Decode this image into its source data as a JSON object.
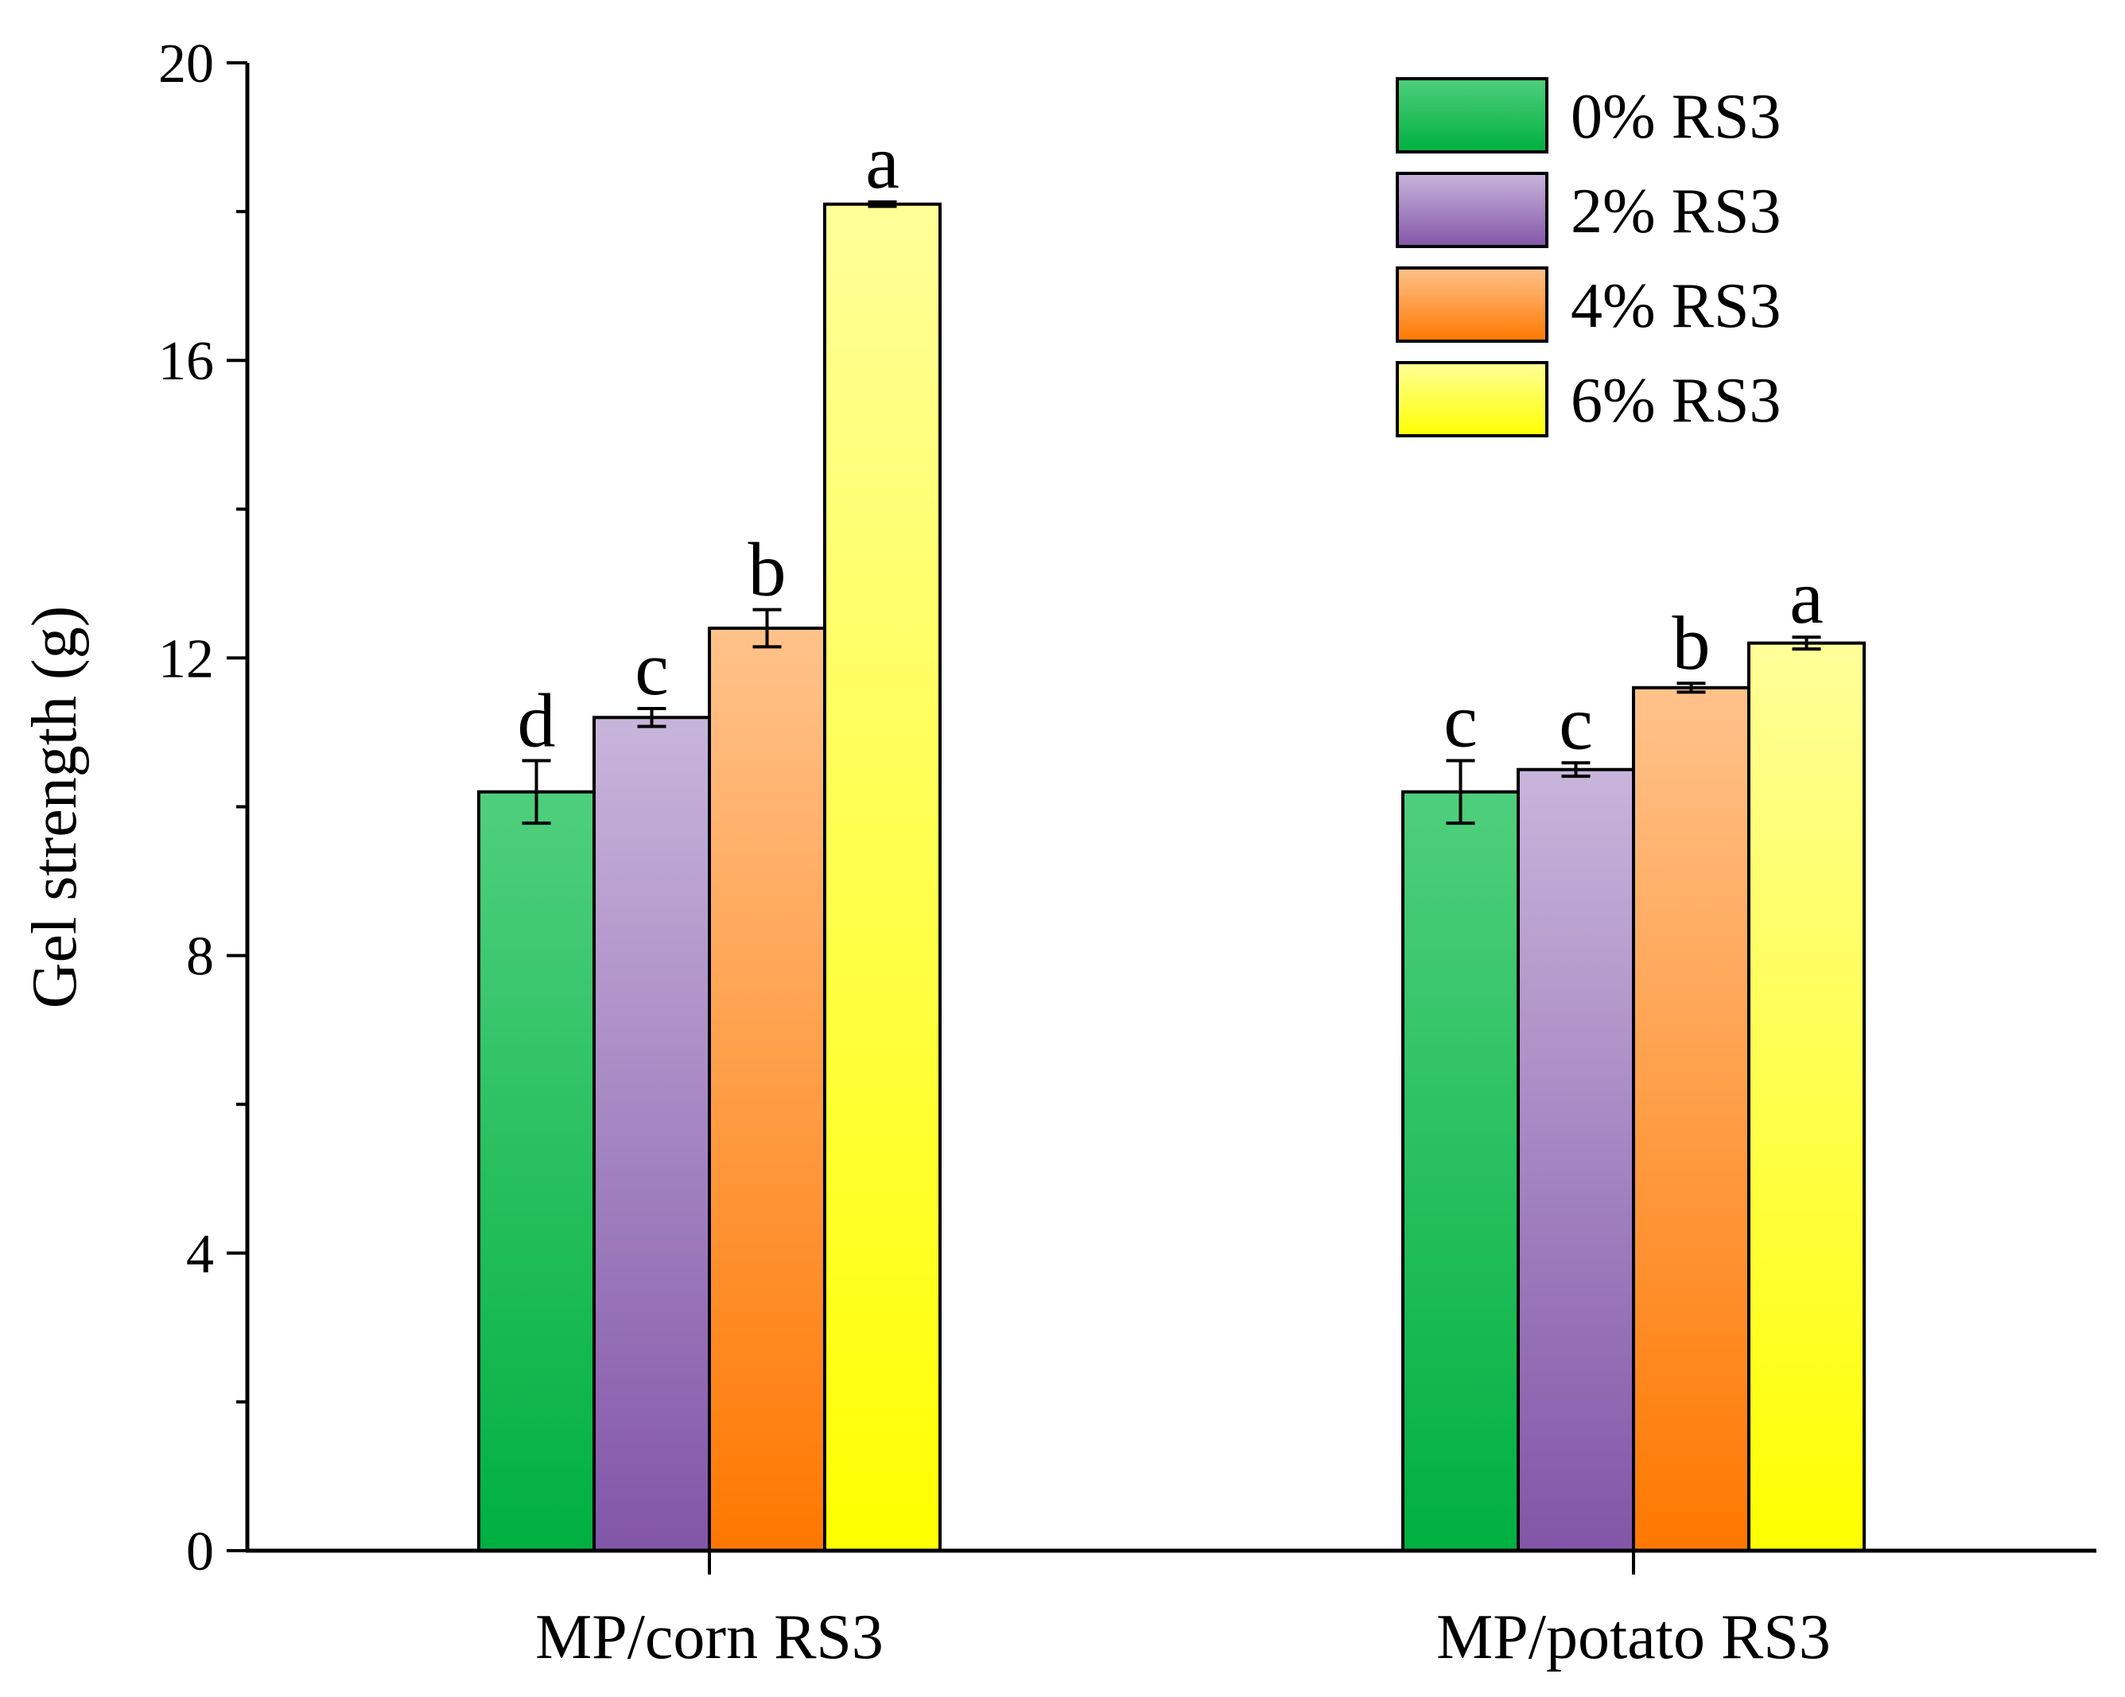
{
  "chart_data": {
    "type": "bar",
    "title": "",
    "xlabel": "",
    "ylabel": "Gel strength (g)",
    "ylim": [
      0,
      20
    ],
    "yticks": [
      0,
      4,
      8,
      12,
      16,
      20
    ],
    "categories": [
      "MP/corn RS3",
      "MP/potato RS3"
    ],
    "series": [
      {
        "name": "0% RS3",
        "values": [
          10.2,
          10.2
        ],
        "errors": [
          0.42,
          0.42
        ],
        "labels": [
          "d",
          "c"
        ]
      },
      {
        "name": "2% RS3",
        "values": [
          11.2,
          10.5
        ],
        "errors": [
          0.12,
          0.09
        ],
        "labels": [
          "c",
          "c"
        ]
      },
      {
        "name": "4% RS3",
        "values": [
          12.4,
          11.6
        ],
        "errors": [
          0.25,
          0.06
        ],
        "labels": [
          "b",
          "b"
        ]
      },
      {
        "name": "6% RS3",
        "values": [
          18.1,
          12.2
        ],
        "errors": [
          0.03,
          0.08
        ],
        "labels": [
          "a",
          "a"
        ]
      }
    ],
    "legend_position": "top-right",
    "grid": false
  },
  "colors": {
    "series_top": [
      "#4fcf7d",
      "#c8b5db",
      "#ffc28a",
      "#ffff99"
    ],
    "series_bottom": [
      "#00b040",
      "#8255a8",
      "#ff7800",
      "#ffff00"
    ],
    "axis": "#000000"
  }
}
